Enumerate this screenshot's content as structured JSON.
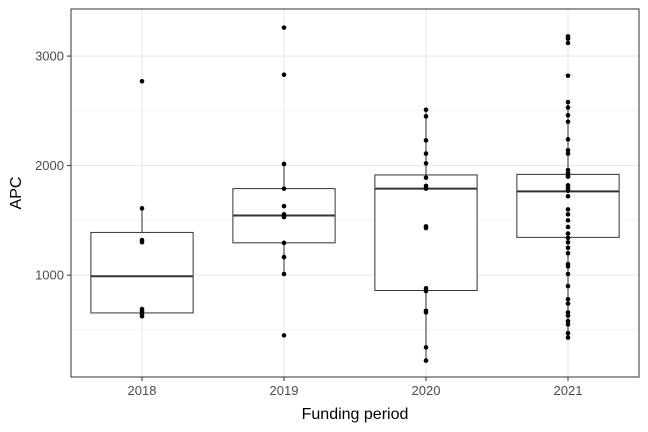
{
  "chart_data": {
    "type": "box",
    "xlabel": "Funding period",
    "ylabel": "APC",
    "ylim": [
      70,
      3430
    ],
    "y_ticks": [
      1000,
      2000,
      3000
    ],
    "grid": true,
    "theme": "bw",
    "categories": [
      "2018",
      "2019",
      "2020",
      "2021"
    ],
    "boxes": [
      {
        "category": "2018",
        "q1": 655,
        "median": 990,
        "q3": 1390,
        "whisker_low": 620,
        "whisker_high": 1610
      },
      {
        "category": "2019",
        "q1": 1295,
        "median": 1545,
        "q3": 1790,
        "whisker_low": 1010,
        "whisker_high": 2015
      },
      {
        "category": "2020",
        "q1": 860,
        "median": 1790,
        "q3": 1915,
        "whisker_low": 220,
        "whisker_high": 2510
      },
      {
        "category": "2021",
        "q1": 1345,
        "median": 1765,
        "q3": 1920,
        "whisker_low": 430,
        "whisker_high": 2580
      }
    ],
    "points": [
      {
        "category": "2018",
        "values": [
          2770,
          1610,
          1320,
          1300,
          690,
          670,
          645,
          625
        ]
      },
      {
        "category": "2019",
        "values": [
          3260,
          2830,
          2015,
          1790,
          1630,
          1555,
          1530,
          1295,
          1165,
          1010,
          450
        ]
      },
      {
        "category": "2020",
        "values": [
          2510,
          2450,
          2230,
          2110,
          2020,
          1890,
          1815,
          1790,
          1445,
          1430,
          880,
          855,
          675,
          660,
          340,
          220
        ]
      },
      {
        "category": "2021",
        "values": [
          3180,
          3160,
          3120,
          2820,
          2580,
          2530,
          2460,
          2400,
          2240,
          2140,
          2110,
          1960,
          1930,
          1910,
          1900,
          1820,
          1795,
          1770,
          1720,
          1600,
          1555,
          1500,
          1440,
          1380,
          1340,
          1300,
          1250,
          1200,
          1100,
          1080,
          1010,
          900,
          780,
          740,
          660,
          630,
          580,
          550,
          470,
          430
        ]
      }
    ]
  }
}
